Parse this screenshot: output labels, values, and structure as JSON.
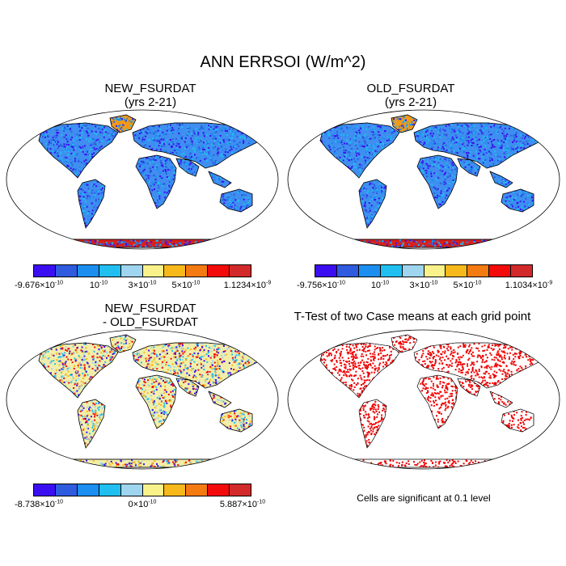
{
  "title": "ANN ERRSOI (W/m^2)",
  "colorbar_colors": [
    "#3b0ef2",
    "#2f5bde",
    "#1b8ef0",
    "#20bff0",
    "#9fd5ee",
    "#f9f28a",
    "#f7b81c",
    "#f47a12",
    "#f30a0a",
    "#d22a2a"
  ],
  "panels": {
    "new": {
      "title": "NEW_FSURDAT",
      "subtitle": "(yrs 2-21)",
      "colorbar": {
        "t0": "-9.676×10",
        "e0": "-10",
        "t1": "10",
        "e1": "-10",
        "t2": "3×10",
        "e2": "-10",
        "t3": "5×10",
        "e3": "-10",
        "t4": "1.1234×10",
        "e4": "-9"
      }
    },
    "old": {
      "title": "OLD_FSURDAT",
      "subtitle": "(yrs 2-21)",
      "colorbar": {
        "t0": "-9.756×10",
        "e0": "-10",
        "t1": "10",
        "e1": "-10",
        "t2": "3×10",
        "e2": "-10",
        "t3": "5×10",
        "e3": "-10",
        "t4": "1.1034×10",
        "e4": "-9"
      }
    },
    "diff": {
      "title": "NEW_FSURDAT",
      "subtitle": "- OLD_FSURDAT",
      "colorbar": {
        "t0": "-8.738×10",
        "e0": "-10",
        "t1": "0×10",
        "e1": "-10",
        "t2": "5.887×10",
        "e2": "-10"
      }
    },
    "ttest": {
      "title": "T-Test of two Case means at each grid point",
      "note": "Cells are significant at 0.1 level"
    }
  }
}
